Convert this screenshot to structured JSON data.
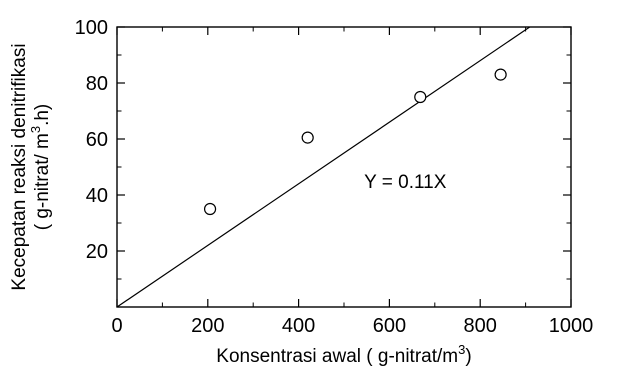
{
  "chart_data": {
    "type": "scatter",
    "title": "",
    "xlabel": "Konsentrasi awal ( g-nitrat/m",
    "xlabel_superscript": "3",
    "xlabel_suffix": ")",
    "ylabel_line1": "Kecepatan reaksi denitrifikasi",
    "ylabel_line2": "( g-nitrat/ m",
    "ylabel_superscript": "3",
    "ylabel_line2_suffix": ".h)",
    "xlim": [
      0,
      1000
    ],
    "ylim": [
      0,
      100
    ],
    "x_ticks": [
      0,
      200,
      400,
      600,
      800,
      1000
    ],
    "y_ticks": [
      20,
      40,
      60,
      80,
      100
    ],
    "x_minor_step": 100,
    "y_minor_step": 10,
    "grid": false,
    "series": [
      {
        "marker": "open-circle",
        "points": [
          {
            "x": 205,
            "y": 35
          },
          {
            "x": 420,
            "y": 60.5
          },
          {
            "x": 668,
            "y": 75
          },
          {
            "x": 845,
            "y": 83
          }
        ]
      }
    ],
    "fit_line": {
      "slope": 0.11,
      "intercept": 0,
      "label": "Y = 0.11X"
    }
  }
}
